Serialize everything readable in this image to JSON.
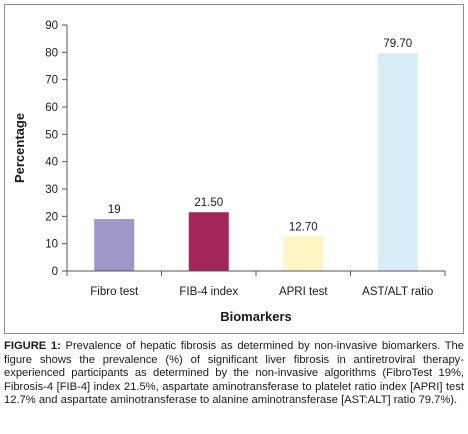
{
  "chart_data": {
    "type": "bar",
    "categories": [
      "Fibro test",
      "FIB-4 index",
      "APRI test",
      "AST/ALT ratio"
    ],
    "values": [
      19,
      21.5,
      12.7,
      79.7
    ],
    "data_labels": [
      "19",
      "21.50",
      "12.70",
      "79.70"
    ],
    "colors": [
      "#9d98c8",
      "#a3265a",
      "#fdf5c3",
      "#d8edf8"
    ],
    "xlabel": "Biomarkers",
    "ylabel": "Percentage",
    "ylim": [
      0,
      90
    ],
    "yticks": [
      0,
      10,
      20,
      30,
      40,
      50,
      60,
      70,
      80,
      90
    ],
    "grid": false,
    "legend": "none"
  },
  "caption": {
    "label": "FIGURE 1:",
    "text": " Prevalence of hepatic fibrosis as determined by non-invasive biomarkers. The figure shows the prevalence (%) of significant liver fibrosis in antiretroviral therapy-experienced participants as determined by the non-invasive algorithms (FibroTest 19%, Fibrosis-4 [FIB-4] index 21.5%, aspartate aminotransferase to platelet ratio index [APRI] test 12.7% and aspartate aminotransferase to alanine aminotransferase [AST:ALT] ratio 79.7%)."
  }
}
